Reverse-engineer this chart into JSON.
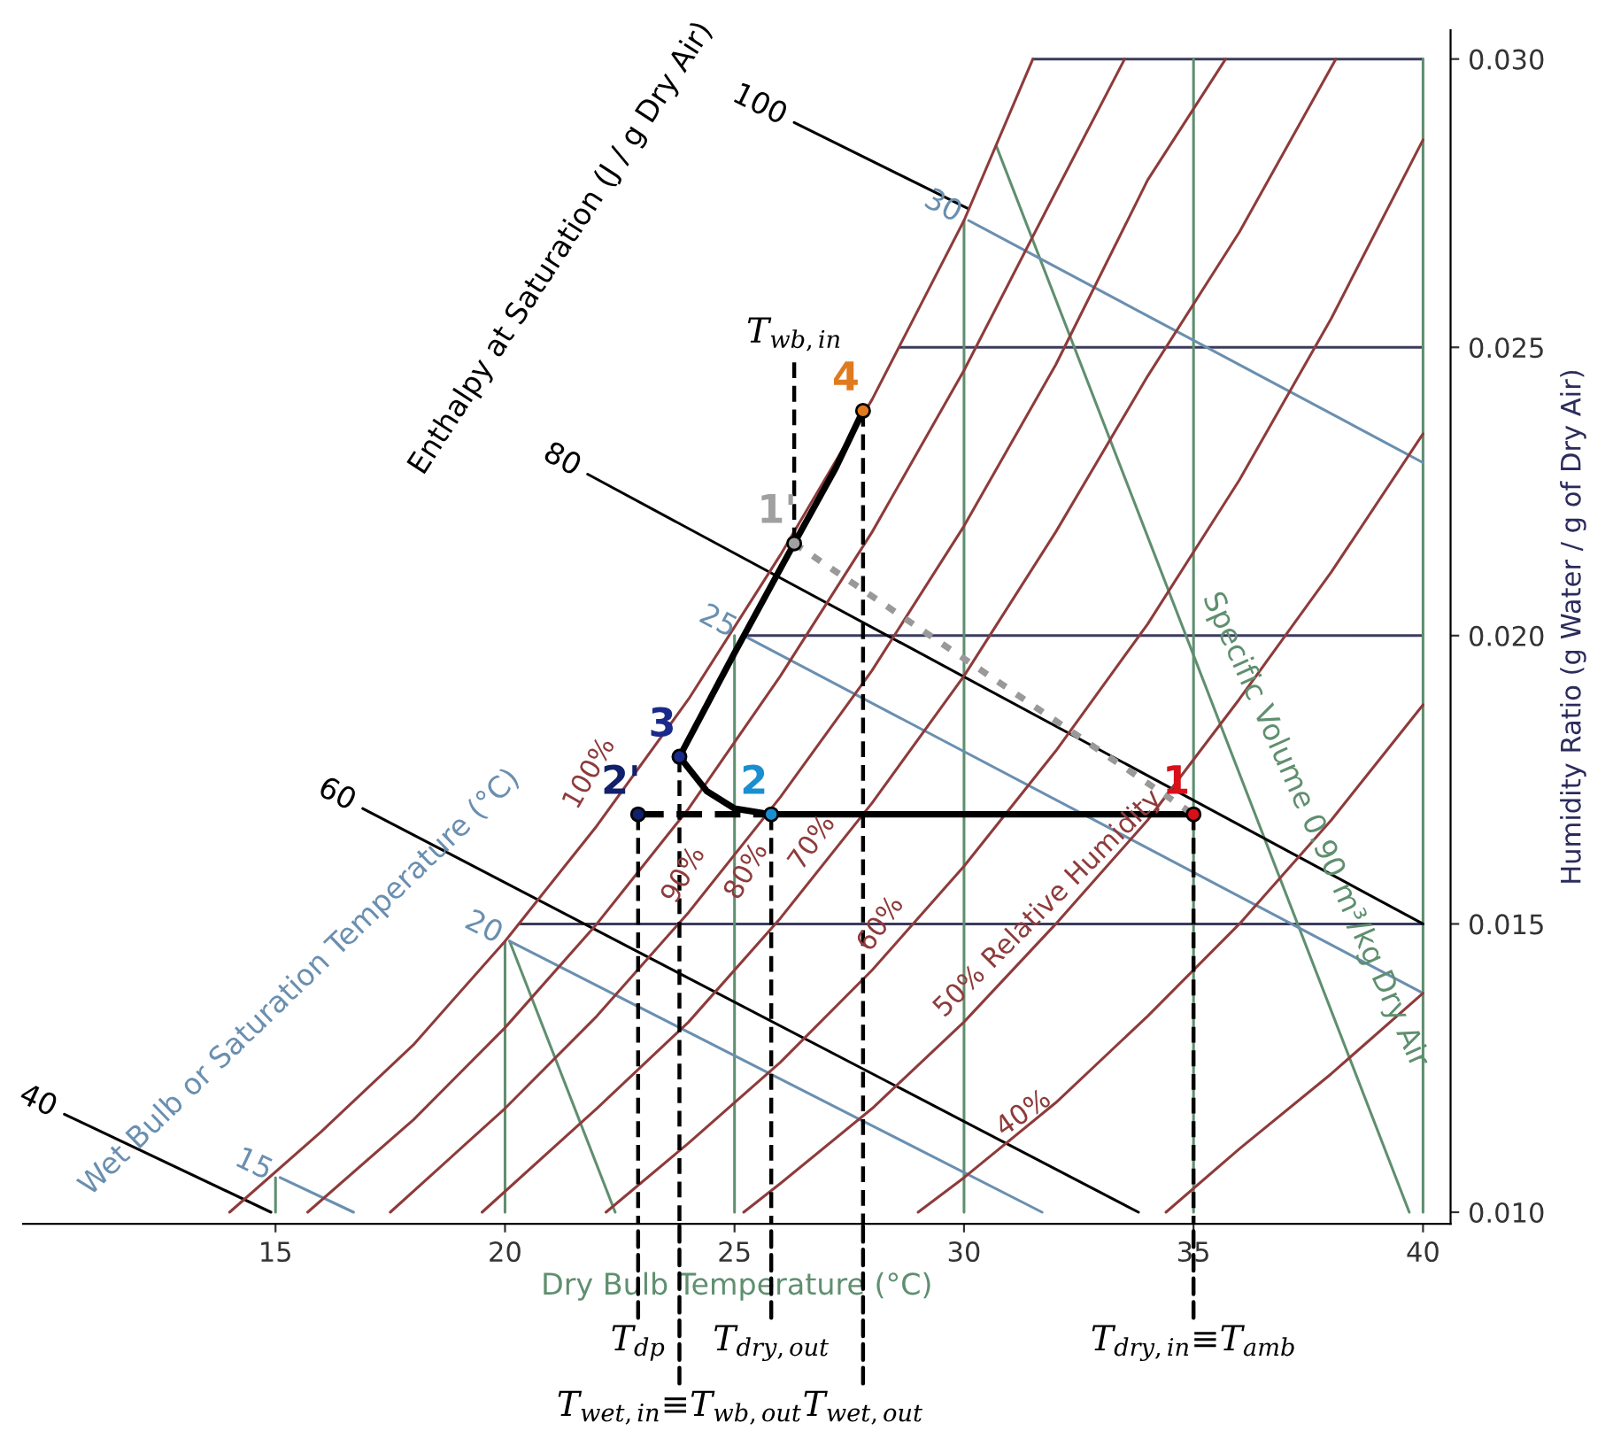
{
  "chart_data": {
    "type": "line",
    "xlabel": "Dry Bulb Temperature (°C)",
    "ylabel": "Humidity Ratio (g Water / g of Dry Air)",
    "xlim": [
      9.5,
      40.6
    ],
    "ylim": [
      0.0098,
      0.0305
    ],
    "xticks": [
      15,
      20,
      25,
      30,
      35,
      40
    ],
    "yticks": [
      {
        "value": 0.01,
        "label": "0.010"
      },
      {
        "value": 0.015,
        "label": "0.015"
      },
      {
        "value": 0.02,
        "label": "0.020"
      },
      {
        "value": 0.025,
        "label": "0.025"
      },
      {
        "value": 0.03,
        "label": "0.030"
      }
    ],
    "grid": false,
    "series": [
      {
        "color": "#3b3b5c",
        "x": [
          20.3,
          40
        ],
        "values": [
          0.015,
          0.015
        ]
      },
      {
        "color": "#3b3b5c",
        "x": [
          25.2,
          40
        ],
        "values": [
          0.02,
          0.02
        ]
      },
      {
        "color": "#3b3b5c",
        "x": [
          28.6,
          40
        ],
        "values": [
          0.025,
          0.025
        ]
      },
      {
        "color": "#3b3b5c",
        "x": [
          31.5,
          40
        ],
        "values": [
          0.03,
          0.03
        ]
      },
      {
        "color": "#5f8f6f",
        "x": [
          15,
          15
        ],
        "values": [
          0.01,
          0.0106
        ]
      },
      {
        "color": "#5f8f6f",
        "x": [
          20,
          20
        ],
        "values": [
          0.01,
          0.0147
        ]
      },
      {
        "color": "#5f8f6f",
        "x": [
          25,
          25
        ],
        "values": [
          0.01,
          0.02
        ]
      },
      {
        "color": "#5f8f6f",
        "x": [
          30,
          30
        ],
        "values": [
          0.01,
          0.0272
        ]
      },
      {
        "color": "#5f8f6f",
        "x": [
          35,
          35
        ],
        "values": [
          0.01,
          0.03
        ]
      },
      {
        "color": "#5f8f6f",
        "x": [
          40,
          40
        ],
        "values": [
          0.01,
          0.03
        ]
      },
      {
        "color": "#5f8f6f",
        "x": [
          30.7,
          39.7
        ],
        "values": [
          0.0285,
          0.01
        ]
      },
      {
        "color": "#5f8f6f",
        "x": [
          20.1,
          22.4
        ],
        "values": [
          0.0147,
          0.01
        ]
      },
      {
        "name": "15",
        "color": "#6a8fb0",
        "x": [
          15.1,
          16.7
        ],
        "values": [
          0.0106,
          0.01
        ]
      },
      {
        "name": "20",
        "color": "#6a8fb0",
        "x": [
          20.1,
          31.7
        ],
        "values": [
          0.0147,
          0.01
        ]
      },
      {
        "name": "25",
        "color": "#6a8fb0",
        "x": [
          25.2,
          40
        ],
        "values": [
          0.02,
          0.0138
        ]
      },
      {
        "name": "30",
        "color": "#6a8fb0",
        "x": [
          30.1,
          40
        ],
        "values": [
          0.0272,
          0.023
        ]
      },
      {
        "name": "40",
        "color": "#000000",
        "x": [
          10.4,
          14.9
        ],
        "values": [
          0.0117,
          0.01
        ]
      },
      {
        "name": "60",
        "color": "#000000",
        "x": [
          16.9,
          33.8
        ],
        "values": [
          0.017,
          0.01
        ]
      },
      {
        "name": "80",
        "color": "#000000",
        "x": [
          21.8,
          40
        ],
        "values": [
          0.0228,
          0.015
        ]
      },
      {
        "name": "100",
        "color": "#000000",
        "x": [
          26.3,
          30.1
        ],
        "values": [
          0.0289,
          0.0274
        ]
      },
      {
        "color": "#8e3b3b",
        "x": [
          14.0,
          16,
          18,
          20,
          22,
          24,
          26,
          28,
          30,
          31.5
        ],
        "values": [
          0.01,
          0.0114,
          0.0129,
          0.0147,
          0.0167,
          0.0189,
          0.0214,
          0.0241,
          0.0272,
          0.03
        ]
      },
      {
        "color": "#8e3b3b",
        "x": [
          15.7,
          18,
          20,
          22,
          24,
          26,
          28,
          30,
          32,
          33.5
        ],
        "values": [
          0.01,
          0.0116,
          0.0132,
          0.015,
          0.017,
          0.0193,
          0.0218,
          0.0246,
          0.0277,
          0.03
        ]
      },
      {
        "color": "#8e3b3b",
        "x": [
          17.5,
          20,
          22,
          24,
          26,
          28,
          30,
          32,
          34,
          35.7
        ],
        "values": [
          0.01,
          0.0118,
          0.0134,
          0.0152,
          0.0172,
          0.0194,
          0.0219,
          0.0247,
          0.0279,
          0.03
        ]
      },
      {
        "color": "#8e3b3b",
        "x": [
          19.5,
          22,
          24,
          26,
          28,
          30,
          32,
          34,
          36,
          38.1
        ],
        "values": [
          0.01,
          0.0118,
          0.0133,
          0.0151,
          0.0171,
          0.0193,
          0.0218,
          0.0245,
          0.027,
          0.03
        ]
      },
      {
        "color": "#8e3b3b",
        "x": [
          22.2,
          24,
          26,
          28,
          30,
          32,
          34,
          36,
          38,
          40
        ],
        "values": [
          0.01,
          0.0112,
          0.0126,
          0.0142,
          0.016,
          0.018,
          0.0202,
          0.0227,
          0.0255,
          0.0286
        ]
      },
      {
        "color": "#8e3b3b",
        "x": [
          25.2,
          26,
          28,
          30,
          32,
          34,
          36,
          38,
          40
        ],
        "values": [
          0.01,
          0.0105,
          0.0118,
          0.0133,
          0.015,
          0.0168,
          0.0189,
          0.0211,
          0.0235
        ]
      },
      {
        "color": "#8e3b3b",
        "x": [
          29.0,
          30,
          32,
          34,
          36,
          38,
          40
        ],
        "values": [
          0.01,
          0.0106,
          0.0119,
          0.0134,
          0.015,
          0.0168,
          0.0188
        ]
      },
      {
        "color": "#8e3b3b",
        "x": [
          34.4,
          36,
          38,
          40
        ],
        "values": [
          0.01,
          0.0111,
          0.0124,
          0.0138
        ]
      },
      {
        "color": "#000000",
        "line_style": "dashed",
        "x": [
          22.9,
          25.8
        ],
        "values": [
          0.0169,
          0.0169
        ]
      },
      {
        "color": "#000000",
        "x": [
          25.8,
          35.0
        ],
        "values": [
          0.0169,
          0.0169
        ]
      },
      {
        "color": "#000000",
        "x": [
          23.8,
          24.4,
          25.0,
          25.8
        ],
        "values": [
          0.0179,
          0.0173,
          0.017,
          0.0169
        ]
      },
      {
        "color": "#000000",
        "x": [
          23.8,
          25.0,
          26.3,
          27.2,
          27.8
        ],
        "values": [
          0.0179,
          0.0197,
          0.0216,
          0.0229,
          0.0239
        ]
      },
      {
        "color": "#999999",
        "line_style": "dotted",
        "x": [
          26.3,
          35.0
        ],
        "values": [
          0.0216,
          0.0169
        ]
      },
      {
        "color": "#000000",
        "line_style": "dashed",
        "x": [
          22.9,
          22.9
        ],
        "values": [
          0.0169,
          0.0098
        ]
      },
      {
        "color": "#000000",
        "line_style": "dashed",
        "x": [
          23.8,
          23.8
        ],
        "values": [
          0.0179,
          0.0098
        ]
      },
      {
        "color": "#000000",
        "line_style": "dashed",
        "x": [
          25.8,
          25.8
        ],
        "values": [
          0.0169,
          0.0098
        ]
      },
      {
        "color": "#000000",
        "line_style": "dashed",
        "x": [
          26.3,
          26.3
        ],
        "values": [
          0.0216,
          0.0248
        ]
      },
      {
        "color": "#000000",
        "line_style": "dashed",
        "x": [
          27.8,
          27.8
        ],
        "values": [
          0.0239,
          0.0098
        ]
      },
      {
        "color": "#000000",
        "line_style": "dashed",
        "x": [
          35.0,
          35.0
        ],
        "values": [
          0.0169,
          0.0098
        ]
      },
      {
        "type": "scatter",
        "marker": "circle",
        "name": "1",
        "color": "#d8101a",
        "x": [
          35.0
        ],
        "values": [
          0.0169
        ]
      },
      {
        "type": "scatter",
        "marker": "circle",
        "name": "2",
        "color": "#1a8fd0",
        "x": [
          25.8
        ],
        "values": [
          0.0169
        ]
      },
      {
        "type": "scatter",
        "marker": "circle",
        "name": "2'",
        "color": "#10206a",
        "x": [
          22.9
        ],
        "values": [
          0.0169
        ]
      },
      {
        "type": "scatter",
        "marker": "circle",
        "name": "3",
        "color": "#1a2a8a",
        "x": [
          23.8
        ],
        "values": [
          0.0179
        ]
      },
      {
        "type": "scatter",
        "marker": "circle",
        "name": "1'",
        "color": "#a0a0a0",
        "x": [
          26.3
        ],
        "values": [
          0.0216
        ]
      },
      {
        "type": "scatter",
        "marker": "circle",
        "name": "4",
        "color": "#e07a20",
        "x": [
          27.8
        ],
        "values": [
          0.0239
        ]
      }
    ],
    "annotations": [
      "Enthalpy at Saturation (J / g Dry Air)",
      "Wet Bulb or Saturation Temperature (°C)",
      "Specific Volume 0.90 m³/kg Dry Air",
      "100%",
      "90%",
      "80%",
      "70%",
      "60%",
      "50% Relative Humidity",
      "40%",
      {
        "text": "T$_{dp}$",
        "x": 22.9,
        "y": 0.0098
      },
      {
        "text": "T$_{wet,in}$≡T$_{wb,out}$",
        "x": 23.8,
        "y": 0.0098
      },
      {
        "text": "T$_{dry,out}$",
        "x": 25.8,
        "y": 0.0098
      },
      {
        "text": "T$_{wb,in}$",
        "x": 26.3,
        "y": 0.0248
      },
      {
        "text": "T$_{wet,out}$",
        "x": 27.8,
        "y": 0.0098
      },
      {
        "text": "T$_{dry,in}$≡T$_{amb}$",
        "x": 35.0,
        "y": 0.0098
      }
    ]
  }
}
